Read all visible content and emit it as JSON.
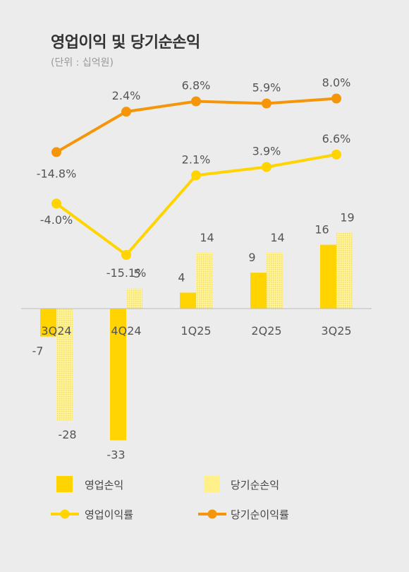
{
  "title": "영업이익 및 당기순손익",
  "unit": "(단위 : 십억원)",
  "chart_data": {
    "type": "bar",
    "categories": [
      "3Q24",
      "4Q24",
      "1Q25",
      "2Q25",
      "3Q25"
    ],
    "series": [
      {
        "name": "영업손익",
        "values": [
          -7,
          -33,
          4,
          9,
          16
        ],
        "color": "#ffd400",
        "labels": [
          "-7",
          "-33",
          "4",
          "9",
          "16"
        ]
      },
      {
        "name": "당기순손익",
        "values": [
          -28,
          5,
          14,
          14,
          19
        ],
        "color": "#fff08a",
        "labels": [
          "-28",
          "5",
          "14",
          "14",
          "19"
        ]
      }
    ],
    "lines": [
      {
        "name": "영업이익률",
        "values": [
          -4.0,
          -15.1,
          2.1,
          3.9,
          6.6
        ],
        "labels": [
          "-4.0%",
          "-15.1%",
          "2.1%",
          "3.9%",
          "6.6%"
        ],
        "color": "#ffd400"
      },
      {
        "name": "당기순이익률",
        "values": [
          -14.8,
          2.4,
          6.8,
          5.9,
          8.0
        ],
        "labels": [
          "-14.8%",
          "2.4%",
          "6.8%",
          "5.9%",
          "8.0%"
        ],
        "color": "#f5960a"
      }
    ],
    "legend": [
      "영업손익",
      "당기순손익",
      "영업이익률",
      "당기순이익률"
    ],
    "legend_position": "bottom"
  }
}
